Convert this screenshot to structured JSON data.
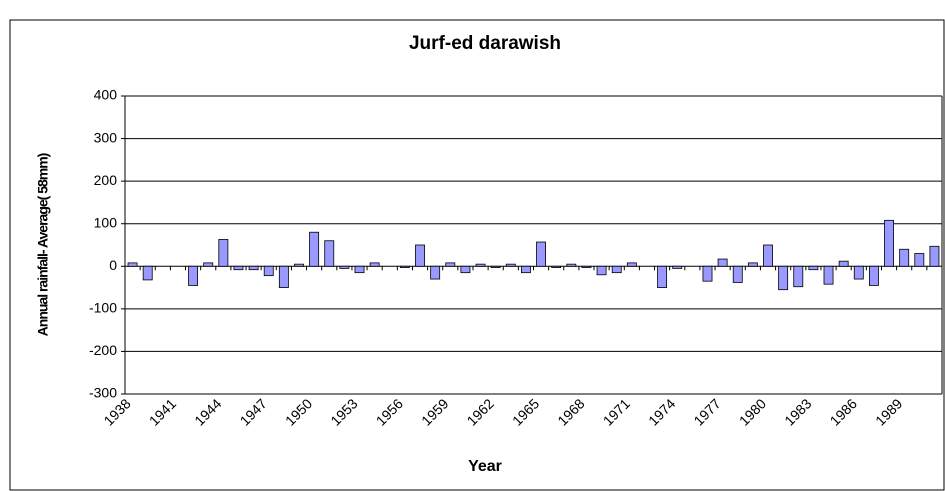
{
  "chart_data": {
    "type": "bar",
    "title": "Jurf-ed darawish",
    "x_label": "Year",
    "y_label": "Annual rainfall- Average( 58mm)",
    "categories": [
      "1938",
      null,
      null,
      "1941",
      null,
      null,
      "1944",
      null,
      null,
      "1947",
      null,
      null,
      "1950",
      null,
      null,
      "1953",
      null,
      null,
      "1956",
      null,
      null,
      "1959",
      null,
      null,
      "1962",
      null,
      null,
      "1965",
      null,
      null,
      "1968",
      null,
      null,
      "1971",
      null,
      null,
      "1974",
      null,
      null,
      "1977",
      null,
      null,
      "1980",
      null,
      null,
      "1983",
      null,
      null,
      "1986",
      null,
      null,
      "1989",
      null,
      null
    ],
    "values": [
      8,
      -32,
      0,
      0,
      -45,
      8,
      63,
      -8,
      -8,
      -22,
      -50,
      5,
      80,
      60,
      -5,
      -15,
      8,
      0,
      -3,
      50,
      -30,
      8,
      -15,
      5,
      -3,
      5,
      -15,
      57,
      -3,
      5,
      -3,
      -20,
      -15,
      8,
      0,
      -50,
      -5,
      0,
      -35,
      17,
      -38,
      8,
      50,
      -55,
      -48,
      -8,
      -42,
      12,
      -30,
      -45,
      108,
      40,
      30,
      47
    ],
    "color": "#9999ff",
    "ylim": [
      -300,
      400
    ],
    "yticks": [
      -300,
      -200,
      -100,
      0,
      100,
      200,
      300,
      400
    ],
    "grid": true
  }
}
